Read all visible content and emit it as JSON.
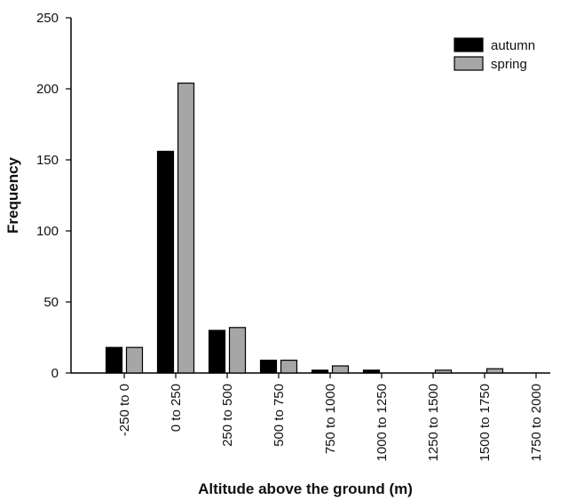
{
  "chart_data": {
    "type": "bar",
    "categories": [
      "-250 to 0",
      "0 to 250",
      "250 to 500",
      "500 to 750",
      "750 to 1000",
      "1000 to 1250",
      "1250 to 1500",
      "1500 to 1750",
      "1750 to 2000"
    ],
    "series": [
      {
        "name": "autumn",
        "color": "#000000",
        "values": [
          18,
          156,
          30,
          9,
          2,
          2,
          0,
          0,
          0
        ]
      },
      {
        "name": "spring",
        "color": "#a6a6a6",
        "values": [
          18,
          204,
          32,
          9,
          5,
          0,
          2,
          3,
          0
        ]
      }
    ],
    "title": "",
    "xlabel": "Altitude above the ground (m)",
    "ylabel": "Frequency",
    "ylim": [
      0,
      250
    ],
    "yticks": [
      0,
      50,
      100,
      150,
      200,
      250
    ],
    "grid": false,
    "legend_position": "top-right"
  }
}
